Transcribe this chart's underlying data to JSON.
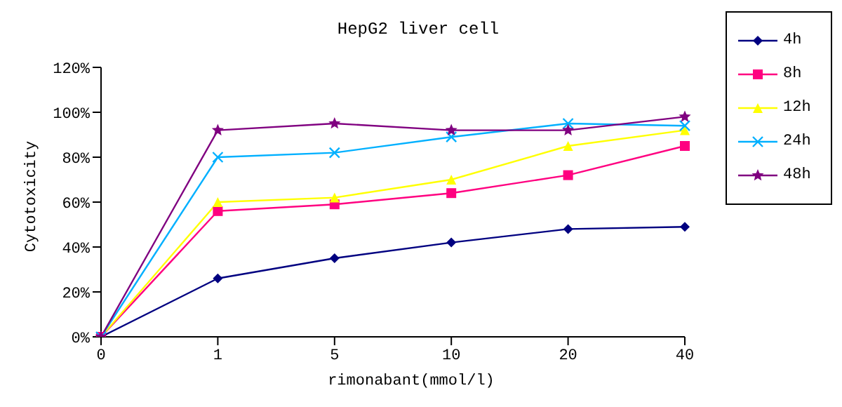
{
  "chart_data": {
    "type": "line",
    "title": "HepG2 liver cell",
    "xlabel": "rimonabant(mmol/l)",
    "ylabel": "Cytotoxicity",
    "categories": [
      "0",
      "1",
      "5",
      "10",
      "20",
      "40"
    ],
    "series": [
      {
        "name": "4h",
        "color": "#000080",
        "marker": "diamond",
        "values": [
          0,
          26,
          35,
          42,
          48,
          49
        ]
      },
      {
        "name": "8h",
        "color": "#ff0080",
        "marker": "square",
        "values": [
          0,
          56,
          59,
          64,
          72,
          85
        ]
      },
      {
        "name": "12h",
        "color": "#ffff00",
        "marker": "triangle",
        "values": [
          0,
          60,
          62,
          70,
          85,
          92
        ]
      },
      {
        "name": "24h",
        "color": "#00b0ff",
        "marker": "cross",
        "values": [
          0,
          80,
          82,
          89,
          95,
          94
        ]
      },
      {
        "name": "48h",
        "color": "#800080",
        "marker": "star",
        "values": [
          0,
          92,
          95,
          92,
          92,
          98
        ]
      }
    ],
    "ylim": [
      0,
      120
    ],
    "yticks": [
      {
        "value": 0,
        "label": "0%"
      },
      {
        "value": 20,
        "label": "20%"
      },
      {
        "value": 40,
        "label": "40%"
      },
      {
        "value": 60,
        "label": "60%"
      },
      {
        "value": 80,
        "label": "80%"
      },
      {
        "value": 100,
        "label": "100%"
      },
      {
        "value": 120,
        "label": "120%"
      }
    ],
    "grid": false,
    "legend": "right"
  }
}
